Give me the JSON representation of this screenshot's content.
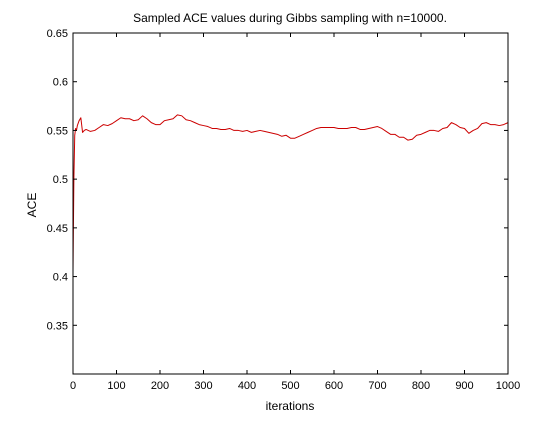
{
  "chart_data": {
    "type": "line",
    "title": "Sampled ACE values during Gibbs sampling with n=10000.",
    "xlabel": "iterations",
    "ylabel": "ACE",
    "xlim": [
      0,
      1000
    ],
    "ylim": [
      0.3,
      0.65
    ],
    "xticks": [
      0,
      100,
      200,
      300,
      400,
      500,
      600,
      700,
      800,
      900,
      1000
    ],
    "xtick_labels": [
      "0",
      "100",
      "200",
      "300",
      "400",
      "500",
      "600",
      "700",
      "800",
      "900",
      "1000"
    ],
    "yticks": [
      0.35,
      0.4,
      0.45,
      0.5,
      0.55,
      0.6,
      0.65
    ],
    "ytick_labels": [
      "0.35",
      "0.4",
      "0.45",
      "0.5",
      "0.55",
      "0.6",
      "0.65"
    ],
    "grid": false,
    "legend": "none",
    "series": [
      {
        "color": "#cc0000",
        "x": [
          0,
          2,
          4,
          6,
          8,
          10,
          14,
          18,
          22,
          26,
          30,
          40,
          50,
          60,
          70,
          80,
          90,
          100,
          110,
          120,
          130,
          140,
          150,
          160,
          170,
          180,
          190,
          200,
          210,
          220,
          230,
          240,
          250,
          260,
          270,
          280,
          290,
          300,
          310,
          320,
          330,
          340,
          350,
          360,
          370,
          380,
          390,
          400,
          410,
          420,
          430,
          440,
          450,
          460,
          470,
          480,
          490,
          500,
          510,
          520,
          530,
          540,
          550,
          560,
          570,
          580,
          590,
          600,
          610,
          620,
          630,
          640,
          650,
          660,
          670,
          680,
          690,
          700,
          710,
          720,
          730,
          740,
          750,
          760,
          770,
          780,
          790,
          800,
          810,
          820,
          830,
          840,
          850,
          860,
          870,
          880,
          890,
          900,
          910,
          920,
          930,
          940,
          950,
          960,
          970,
          980,
          990,
          1000
        ],
        "y": [
          0.405,
          0.5,
          0.545,
          0.552,
          0.55,
          0.555,
          0.56,
          0.563,
          0.548,
          0.55,
          0.551,
          0.549,
          0.55,
          0.553,
          0.556,
          0.555,
          0.557,
          0.56,
          0.563,
          0.562,
          0.562,
          0.56,
          0.561,
          0.565,
          0.562,
          0.558,
          0.556,
          0.556,
          0.56,
          0.561,
          0.562,
          0.566,
          0.565,
          0.561,
          0.56,
          0.558,
          0.556,
          0.555,
          0.554,
          0.552,
          0.552,
          0.551,
          0.551,
          0.552,
          0.55,
          0.55,
          0.549,
          0.55,
          0.548,
          0.549,
          0.55,
          0.549,
          0.548,
          0.547,
          0.546,
          0.544,
          0.545,
          0.542,
          0.542,
          0.544,
          0.546,
          0.548,
          0.55,
          0.552,
          0.553,
          0.553,
          0.553,
          0.553,
          0.552,
          0.552,
          0.552,
          0.553,
          0.553,
          0.551,
          0.551,
          0.552,
          0.553,
          0.554,
          0.552,
          0.549,
          0.546,
          0.546,
          0.543,
          0.543,
          0.54,
          0.541,
          0.545,
          0.546,
          0.548,
          0.55,
          0.55,
          0.549,
          0.552,
          0.553,
          0.558,
          0.556,
          0.553,
          0.552,
          0.547,
          0.55,
          0.552,
          0.557,
          0.558,
          0.556,
          0.556,
          0.555,
          0.556,
          0.558
        ]
      }
    ]
  }
}
